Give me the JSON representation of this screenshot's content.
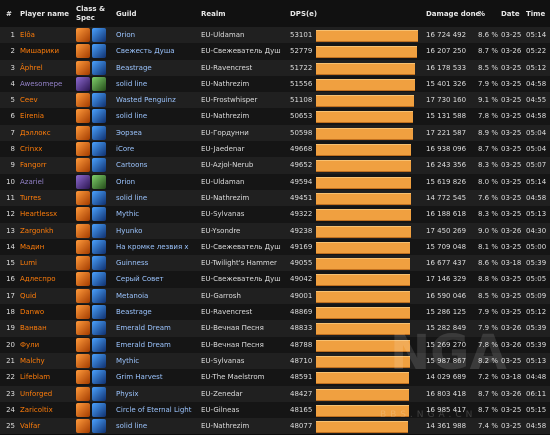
{
  "header": {
    "rank": "#",
    "player": "Player name",
    "class_spec_line1": "Class &",
    "class_spec_line2": "Spec",
    "guild": "Guild",
    "realm": "Realm",
    "dps": "DPS(e)",
    "damage": "Damage done",
    "pct": "%",
    "date": "Date",
    "time": "Time"
  },
  "max_dps": 53101,
  "rows": [
    {
      "rank": "1",
      "name": "Elôa",
      "name_color": "#ff7d0a",
      "class_icon": "druid-class-icon",
      "spec_icon": "balance-spec-icon",
      "guild": "Orion",
      "realm": "EU-Uldaman",
      "dps": "53101",
      "damage": "16 724 492",
      "pct": "8.6 %",
      "date": "03-25",
      "time": "05:14"
    },
    {
      "rank": "2",
      "name": "Мишарики",
      "name_color": "#ff7d0a",
      "class_icon": "druid-class-icon",
      "spec_icon": "balance-spec-icon",
      "guild": "Свежесть Душа",
      "realm": "EU-Свежеватель Душ",
      "dps": "52779",
      "damage": "16 207 250",
      "pct": "8.7 %",
      "date": "03-26",
      "time": "05:22"
    },
    {
      "rank": "3",
      "name": "Âphrel",
      "name_color": "#ff7d0a",
      "class_icon": "druid-class-icon",
      "spec_icon": "balance-spec-icon",
      "guild": "Beastrage",
      "realm": "EU-Ravencrest",
      "dps": "51722",
      "damage": "16 178 533",
      "pct": "8.5 %",
      "date": "03-25",
      "time": "05:12"
    },
    {
      "rank": "4",
      "name": "Awesomepe",
      "name_color": "#9482c9",
      "class_icon": "warlock-class-icon",
      "spec_icon": "affliction-spec-icon",
      "guild": "solid line",
      "realm": "EU-Nathrezim",
      "dps": "51556",
      "damage": "15 401 326",
      "pct": "7.9 %",
      "date": "03-25",
      "time": "04:58"
    },
    {
      "rank": "5",
      "name": "Ceev",
      "name_color": "#ff7d0a",
      "class_icon": "druid-class-icon",
      "spec_icon": "balance-spec-icon",
      "guild": "Wasted Penguinz",
      "realm": "EU-Frostwhisper",
      "dps": "51108",
      "damage": "17 730 160",
      "pct": "9.1 %",
      "date": "03-25",
      "time": "04:55"
    },
    {
      "rank": "6",
      "name": "Eirenia",
      "name_color": "#ff7d0a",
      "class_icon": "druid-class-icon",
      "spec_icon": "balance-spec-icon",
      "guild": "solid line",
      "realm": "EU-Nathrezim",
      "dps": "50653",
      "damage": "15 131 588",
      "pct": "7.8 %",
      "date": "03-25",
      "time": "04:58"
    },
    {
      "rank": "7",
      "name": "Дэллокс",
      "name_color": "#ff7d0a",
      "class_icon": "druid-class-icon",
      "spec_icon": "balance-spec-icon",
      "guild": "Эорзеа",
      "realm": "EU-Гордунни",
      "dps": "50598",
      "damage": "17 221 587",
      "pct": "8.9 %",
      "date": "03-25",
      "time": "05:04"
    },
    {
      "rank": "8",
      "name": "Crinxx",
      "name_color": "#ff7d0a",
      "class_icon": "druid-class-icon",
      "spec_icon": "balance-spec-icon",
      "guild": "iCore",
      "realm": "EU-Jaedenar",
      "dps": "49668",
      "damage": "16 938 096",
      "pct": "8.7 %",
      "date": "03-25",
      "time": "05:04"
    },
    {
      "rank": "9",
      "name": "Fangorr",
      "name_color": "#ff7d0a",
      "class_icon": "druid-class-icon",
      "spec_icon": "balance-spec-icon",
      "guild": "Cartoons",
      "realm": "EU-Azjol-Nerub",
      "dps": "49652",
      "damage": "16 243 356",
      "pct": "8.3 %",
      "date": "03-25",
      "time": "05:07"
    },
    {
      "rank": "10",
      "name": "Azariel",
      "name_color": "#9482c9",
      "class_icon": "warlock-class-icon",
      "spec_icon": "affliction-spec-icon",
      "guild": "Orion",
      "realm": "EU-Uldaman",
      "dps": "49594",
      "damage": "15 619 826",
      "pct": "8.0 %",
      "date": "03-25",
      "time": "05:14"
    },
    {
      "rank": "11",
      "name": "Turres",
      "name_color": "#ff7d0a",
      "class_icon": "druid-class-icon",
      "spec_icon": "balance-spec-icon",
      "guild": "solid line",
      "realm": "EU-Nathrezim",
      "dps": "49451",
      "damage": "14 772 545",
      "pct": "7.6 %",
      "date": "03-25",
      "time": "04:58"
    },
    {
      "rank": "12",
      "name": "Heartlessx",
      "name_color": "#ff7d0a",
      "class_icon": "druid-class-icon",
      "spec_icon": "balance-spec-icon",
      "guild": "Mythic",
      "realm": "EU-Sylvanas",
      "dps": "49322",
      "damage": "16 188 618",
      "pct": "8.3 %",
      "date": "03-25",
      "time": "05:13"
    },
    {
      "rank": "13",
      "name": "Zargonkh",
      "name_color": "#ff7d0a",
      "class_icon": "druid-class-icon",
      "spec_icon": "balance-spec-icon",
      "guild": "Hyunko",
      "realm": "EU-Ysondre",
      "dps": "49238",
      "damage": "17 450 269",
      "pct": "9.0 %",
      "date": "03-26",
      "time": "04:30"
    },
    {
      "rank": "14",
      "name": "Мадин",
      "name_color": "#ff7d0a",
      "class_icon": "druid-class-icon",
      "spec_icon": "balance-spec-icon",
      "guild": "На кромке лезвия х",
      "realm": "EU-Свежеватель Душ",
      "dps": "49169",
      "damage": "15 709 048",
      "pct": "8.1 %",
      "date": "03-25",
      "time": "05:00"
    },
    {
      "rank": "15",
      "name": "Lumi",
      "name_color": "#ff7d0a",
      "class_icon": "druid-class-icon",
      "spec_icon": "balance-spec-icon",
      "guild": "Guinness",
      "realm": "EU-Twilight's Hammer",
      "dps": "49055",
      "damage": "16 677 437",
      "pct": "8.6 %",
      "date": "03-18",
      "time": "05:39"
    },
    {
      "rank": "16",
      "name": "Адлеспро",
      "name_color": "#ff7d0a",
      "class_icon": "druid-class-icon",
      "spec_icon": "balance-spec-icon",
      "guild": "Серый Совет",
      "realm": "EU-Свежеватель Душ",
      "dps": "49042",
      "damage": "17 146 329",
      "pct": "8.8 %",
      "date": "03-25",
      "time": "05:05"
    },
    {
      "rank": "17",
      "name": "Quid",
      "name_color": "#ff7d0a",
      "class_icon": "druid-class-icon",
      "spec_icon": "balance-spec-icon",
      "guild": "Metanoia",
      "realm": "EU-Garrosh",
      "dps": "49001",
      "damage": "16 590 046",
      "pct": "8.5 %",
      "date": "03-25",
      "time": "05:09"
    },
    {
      "rank": "18",
      "name": "Danwo",
      "name_color": "#ff7d0a",
      "class_icon": "druid-class-icon",
      "spec_icon": "balance-spec-icon",
      "guild": "Beastrage",
      "realm": "EU-Ravencrest",
      "dps": "48869",
      "damage": "15 286 125",
      "pct": "7.9 %",
      "date": "03-25",
      "time": "05:12"
    },
    {
      "rank": "19",
      "name": "Ванван",
      "name_color": "#ff7d0a",
      "class_icon": "druid-class-icon",
      "spec_icon": "balance-spec-icon",
      "guild": "Emerald Dream",
      "realm": "EU-Вечная Песня",
      "dps": "48833",
      "damage": "15 282 849",
      "pct": "7.9 %",
      "date": "03-26",
      "time": "05:39"
    },
    {
      "rank": "20",
      "name": "Фули",
      "name_color": "#ff7d0a",
      "class_icon": "druid-class-icon",
      "spec_icon": "balance-spec-icon",
      "guild": "Emerald Dream",
      "realm": "EU-Вечная Песня",
      "dps": "48788",
      "damage": "15 269 270",
      "pct": "7.8 %",
      "date": "03-26",
      "time": "05:39"
    },
    {
      "rank": "21",
      "name": "Malchy",
      "name_color": "#ff7d0a",
      "class_icon": "druid-class-icon",
      "spec_icon": "balance-spec-icon",
      "guild": "Mythic",
      "realm": "EU-Sylvanas",
      "dps": "48710",
      "damage": "15 987 867",
      "pct": "8.2 %",
      "date": "03-25",
      "time": "05:13"
    },
    {
      "rank": "22",
      "name": "Lifeblam",
      "name_color": "#ff7d0a",
      "class_icon": "druid-class-icon",
      "spec_icon": "balance-spec-icon",
      "guild": "Grim Harvest",
      "realm": "EU-The Maelstrom",
      "dps": "48591",
      "damage": "14 029 689",
      "pct": "7.2 %",
      "date": "03-18",
      "time": "04:48"
    },
    {
      "rank": "23",
      "name": "Unforged",
      "name_color": "#ff7d0a",
      "class_icon": "druid-class-icon",
      "spec_icon": "balance-spec-icon",
      "guild": "Physix",
      "realm": "EU-Zenedar",
      "dps": "48427",
      "damage": "16 803 418",
      "pct": "8.7 %",
      "date": "03-26",
      "time": "06:11"
    },
    {
      "rank": "24",
      "name": "Zaricoltix",
      "name_color": "#ff7d0a",
      "class_icon": "druid-class-icon",
      "spec_icon": "balance-spec-icon",
      "guild": "Circle of Eternal Light",
      "realm": "EU-Gilneas",
      "dps": "48165",
      "damage": "16 985 417",
      "pct": "8.7 %",
      "date": "03-25",
      "time": "05:15"
    },
    {
      "rank": "25",
      "name": "Valfar",
      "name_color": "#ff7d0a",
      "class_icon": "druid-class-icon",
      "spec_icon": "balance-spec-icon",
      "guild": "solid line",
      "realm": "EU-Nathrezim",
      "dps": "48077",
      "damage": "14 361 988",
      "pct": "7.4 %",
      "date": "03-25",
      "time": "04:58"
    }
  ]
}
